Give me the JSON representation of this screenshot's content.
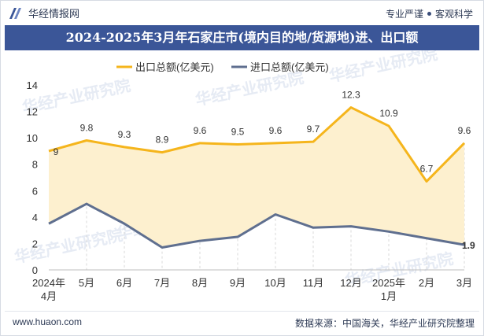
{
  "header": {
    "brand": "华经情报网",
    "tagline_left": "专业严谨",
    "tagline_right": "客观科学"
  },
  "title": "2024-2025年3月年石家庄市(境内目的地/货源地)进、出口额",
  "footer": {
    "url": "www.huaon.com",
    "source": "数据来源：中国海关，华经产业研究院整理"
  },
  "watermark": "华经产业研究院",
  "colors": {
    "title_bg": "#3b5698",
    "export_line": "#f5b51c",
    "export_fill": "#fdf0cf",
    "import_line": "#5f6f8f"
  },
  "chart_data": {
    "type": "line",
    "categories": [
      "2024年\n4月",
      "5月",
      "6月",
      "7月",
      "8月",
      "9月",
      "10月",
      "11月",
      "12月",
      "2025年\n1月",
      "2月",
      "3月"
    ],
    "series": [
      {
        "name": "出口总额(亿美元)",
        "values": [
          9,
          9.8,
          9.3,
          8.9,
          9.6,
          9.5,
          9.6,
          9.7,
          12.3,
          10.9,
          6.7,
          9.6
        ],
        "labels": [
          "9",
          "9.8",
          "9.3",
          "8.9",
          "9.6",
          "9.5",
          "9.6",
          "9.7",
          "12.3",
          "10.9",
          "6.7",
          "9.6"
        ]
      },
      {
        "name": "进口总额(亿美元)",
        "values": [
          3.5,
          5.0,
          3.5,
          1.7,
          2.2,
          2.5,
          4.2,
          3.2,
          3.3,
          2.9,
          2.4,
          1.9
        ],
        "labels": [
          "",
          "",
          "",
          "",
          "",
          "",
          "",
          "",
          "",
          "",
          "",
          "1.9"
        ]
      }
    ],
    "yticks": [
      "0",
      "2",
      "4",
      "6",
      "8",
      "10",
      "12",
      "14"
    ],
    "ylim": [
      0,
      14
    ],
    "legend_position": "top-center",
    "grid": "vertical dashed"
  }
}
